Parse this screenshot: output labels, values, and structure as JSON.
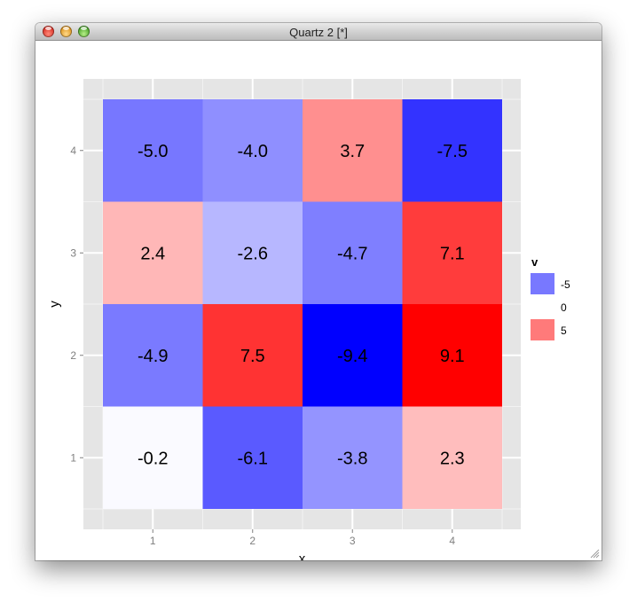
{
  "window": {
    "title": "Quartz 2 [*]"
  },
  "chart_data": {
    "type": "heatmap",
    "xlabel": "x",
    "ylabel": "y",
    "x_ticks": [
      "1",
      "2",
      "3",
      "4"
    ],
    "y_ticks": [
      "1",
      "2",
      "3",
      "4"
    ],
    "xlim": [
      0.5,
      4.5
    ],
    "ylim": [
      0.5,
      4.5
    ],
    "grid": true,
    "legend_placement": "right",
    "cells": [
      {
        "x": 1,
        "y": 4,
        "value": -5.0,
        "label": "-5.0",
        "fill": "#7777ff"
      },
      {
        "x": 2,
        "y": 4,
        "value": -4.0,
        "label": "-4.0",
        "fill": "#8f8fff"
      },
      {
        "x": 3,
        "y": 4,
        "value": 3.7,
        "label": "3.7",
        "fill": "#ff8f8f"
      },
      {
        "x": 4,
        "y": 4,
        "value": -7.5,
        "label": "-7.5",
        "fill": "#3333ff"
      },
      {
        "x": 1,
        "y": 3,
        "value": 2.4,
        "label": "2.4",
        "fill": "#ffb7b7"
      },
      {
        "x": 2,
        "y": 3,
        "value": -2.6,
        "label": "-2.6",
        "fill": "#b7b7ff"
      },
      {
        "x": 3,
        "y": 3,
        "value": -4.7,
        "label": "-4.7",
        "fill": "#7f7fff"
      },
      {
        "x": 4,
        "y": 3,
        "value": 7.1,
        "label": "7.1",
        "fill": "#ff3c3c"
      },
      {
        "x": 1,
        "y": 2,
        "value": -4.9,
        "label": "-4.9",
        "fill": "#7a7aff"
      },
      {
        "x": 2,
        "y": 2,
        "value": 7.5,
        "label": "7.5",
        "fill": "#ff3333"
      },
      {
        "x": 3,
        "y": 2,
        "value": -9.4,
        "label": "-9.4",
        "fill": "#0000ff"
      },
      {
        "x": 4,
        "y": 2,
        "value": 9.1,
        "label": "9.1",
        "fill": "#ff0000"
      },
      {
        "x": 1,
        "y": 1,
        "value": -0.2,
        "label": "-0.2",
        "fill": "#fafaff"
      },
      {
        "x": 2,
        "y": 1,
        "value": -6.1,
        "label": "-6.1",
        "fill": "#5a5aff"
      },
      {
        "x": 3,
        "y": 1,
        "value": -3.8,
        "label": "-3.8",
        "fill": "#9494ff"
      },
      {
        "x": 4,
        "y": 1,
        "value": 2.3,
        "label": "2.3",
        "fill": "#ffbdbd"
      }
    ],
    "legend": {
      "title": "v",
      "entries": [
        {
          "label": "-5",
          "fill": "#7878ff"
        },
        {
          "label": "0",
          "fill": "#ffffff"
        },
        {
          "label": "5",
          "fill": "#ff7a7a"
        }
      ]
    },
    "colors": {
      "panel_background": "#e5e5e5",
      "grid_major": "#ffffff",
      "grid_minor": "#f2f2f2",
      "tick_text": "#7f7f7f",
      "cell_text": "#000000"
    }
  }
}
